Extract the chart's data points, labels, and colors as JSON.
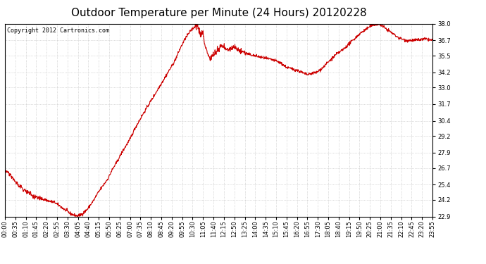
{
  "title": "Outdoor Temperature per Minute (24 Hours) 20120228",
  "copyright_text": "Copyright 2012 Cartronics.com",
  "line_color": "#cc0000",
  "background_color": "#ffffff",
  "plot_bg_color": "#ffffff",
  "grid_color": "#bbbbbb",
  "y_ticks": [
    22.9,
    24.2,
    25.4,
    26.7,
    27.9,
    29.2,
    30.4,
    31.7,
    33.0,
    34.2,
    35.5,
    36.7,
    38.0
  ],
  "y_min": 22.9,
  "y_max": 38.0,
  "x_tick_labels": [
    "00:00",
    "00:35",
    "01:10",
    "01:45",
    "02:20",
    "02:55",
    "03:30",
    "04:05",
    "04:40",
    "05:15",
    "05:50",
    "06:25",
    "07:00",
    "07:35",
    "08:10",
    "08:45",
    "09:20",
    "09:55",
    "10:30",
    "11:05",
    "11:40",
    "12:15",
    "12:50",
    "13:25",
    "14:00",
    "14:35",
    "15:10",
    "15:45",
    "16:20",
    "16:55",
    "17:30",
    "18:05",
    "18:40",
    "19:15",
    "19:50",
    "20:25",
    "21:00",
    "21:35",
    "22:10",
    "22:45",
    "23:20",
    "23:55"
  ],
  "title_fontsize": 11,
  "tick_fontsize": 6,
  "copyright_fontsize": 6,
  "line_width": 0.8,
  "keypoints": [
    [
      0.0,
      26.5
    ],
    [
      0.3,
      26.2
    ],
    [
      0.5,
      25.8
    ],
    [
      0.8,
      25.3
    ],
    [
      1.0,
      25.0
    ],
    [
      1.3,
      24.8
    ],
    [
      1.5,
      24.6
    ],
    [
      1.8,
      24.4
    ],
    [
      2.0,
      24.3
    ],
    [
      2.3,
      24.2
    ],
    [
      2.5,
      24.1
    ],
    [
      2.8,
      24.0
    ],
    [
      3.0,
      23.8
    ],
    [
      3.2,
      23.6
    ],
    [
      3.5,
      23.3
    ],
    [
      3.7,
      23.1
    ],
    [
      3.9,
      23.0
    ],
    [
      4.05,
      22.95
    ],
    [
      4.2,
      23.0
    ],
    [
      4.35,
      23.1
    ],
    [
      4.5,
      23.3
    ],
    [
      4.65,
      23.5
    ],
    [
      4.8,
      23.8
    ],
    [
      5.0,
      24.2
    ],
    [
      5.2,
      24.7
    ],
    [
      5.5,
      25.3
    ],
    [
      5.8,
      25.9
    ],
    [
      6.0,
      26.5
    ],
    [
      6.3,
      27.2
    ],
    [
      6.6,
      28.0
    ],
    [
      7.0,
      28.9
    ],
    [
      7.3,
      29.8
    ],
    [
      7.7,
      30.8
    ],
    [
      8.0,
      31.5
    ],
    [
      8.3,
      32.2
    ],
    [
      8.6,
      32.9
    ],
    [
      8.9,
      33.6
    ],
    [
      9.2,
      34.3
    ],
    [
      9.5,
      35.0
    ],
    [
      9.7,
      35.6
    ],
    [
      9.85,
      36.1
    ],
    [
      10.0,
      36.5
    ],
    [
      10.15,
      36.9
    ],
    [
      10.3,
      37.2
    ],
    [
      10.45,
      37.5
    ],
    [
      10.6,
      37.7
    ],
    [
      10.7,
      37.85
    ],
    [
      10.75,
      37.9
    ],
    [
      10.8,
      37.85
    ],
    [
      10.85,
      37.7
    ],
    [
      10.9,
      37.5
    ],
    [
      10.95,
      37.3
    ],
    [
      11.0,
      37.1
    ],
    [
      11.05,
      37.3
    ],
    [
      11.1,
      37.4
    ],
    [
      11.15,
      37.1
    ],
    [
      11.2,
      36.5
    ],
    [
      11.3,
      36.0
    ],
    [
      11.4,
      35.6
    ],
    [
      11.5,
      35.3
    ],
    [
      11.6,
      35.4
    ],
    [
      11.7,
      35.6
    ],
    [
      11.8,
      35.7
    ],
    [
      11.9,
      35.8
    ],
    [
      12.0,
      36.0
    ],
    [
      12.1,
      36.2
    ],
    [
      12.2,
      36.3
    ],
    [
      12.35,
      36.1
    ],
    [
      12.5,
      35.9
    ],
    [
      12.65,
      36.0
    ],
    [
      12.8,
      36.1
    ],
    [
      12.9,
      36.2
    ],
    [
      13.0,
      36.0
    ],
    [
      13.15,
      35.9
    ],
    [
      13.3,
      35.8
    ],
    [
      13.5,
      35.7
    ],
    [
      13.7,
      35.6
    ],
    [
      14.0,
      35.5
    ],
    [
      14.3,
      35.4
    ],
    [
      14.6,
      35.3
    ],
    [
      14.9,
      35.2
    ],
    [
      15.2,
      35.1
    ],
    [
      15.5,
      34.9
    ],
    [
      15.8,
      34.6
    ],
    [
      16.0,
      34.5
    ],
    [
      16.3,
      34.4
    ],
    [
      16.5,
      34.3
    ],
    [
      16.65,
      34.2
    ],
    [
      16.8,
      34.1
    ],
    [
      17.0,
      34.0
    ],
    [
      17.2,
      34.1
    ],
    [
      17.5,
      34.2
    ],
    [
      17.8,
      34.5
    ],
    [
      18.0,
      34.8
    ],
    [
      18.3,
      35.2
    ],
    [
      18.6,
      35.6
    ],
    [
      19.0,
      36.0
    ],
    [
      19.3,
      36.4
    ],
    [
      19.6,
      36.8
    ],
    [
      19.9,
      37.2
    ],
    [
      20.2,
      37.5
    ],
    [
      20.5,
      37.8
    ],
    [
      20.7,
      37.9
    ],
    [
      20.9,
      38.0
    ],
    [
      21.1,
      37.9
    ],
    [
      21.3,
      37.7
    ],
    [
      21.5,
      37.5
    ],
    [
      21.7,
      37.3
    ],
    [
      21.9,
      37.1
    ],
    [
      22.1,
      36.9
    ],
    [
      22.3,
      36.8
    ],
    [
      22.5,
      36.7
    ],
    [
      22.7,
      36.7
    ],
    [
      23.0,
      36.7
    ],
    [
      23.3,
      36.75
    ],
    [
      23.6,
      36.8
    ],
    [
      23.8,
      36.75
    ],
    [
      24.0,
      36.7
    ]
  ]
}
